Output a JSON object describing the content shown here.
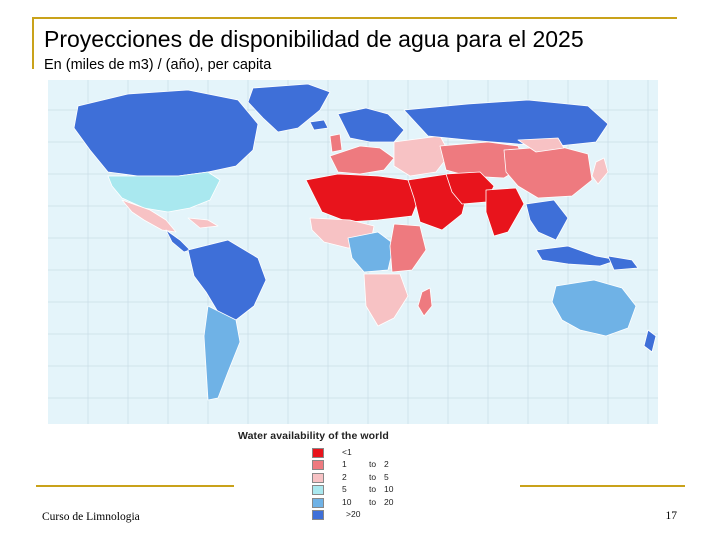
{
  "slide": {
    "title": "Proyecciones de disponibilidad de agua para el 2025",
    "subtitle": "En   (miles de m3) / (año), per capita",
    "footer": "Curso de Limnologia",
    "page_number": "17"
  },
  "map": {
    "legend_title": "Water availability of the world",
    "ocean_color": "#e4f4fa",
    "land_gray": "#c8c8c8",
    "legend": [
      {
        "color": "#e8141c",
        "from": "<1",
        "to_word": "",
        "to": ""
      },
      {
        "color": "#ee7a7f",
        "from": "1",
        "to_word": "to",
        "to": "2"
      },
      {
        "color": "#f7c2c4",
        "from": "2",
        "to_word": "to",
        "to": "5"
      },
      {
        "color": "#a9e8ef",
        "from": "5",
        "to_word": "to",
        "to": "10"
      },
      {
        "color": "#6fb2e6",
        "from": "10",
        "to_word": "to",
        "to": "20"
      },
      {
        "color": "#3e6fd8",
        "from": ">20",
        "to_word": "",
        "to": ""
      }
    ]
  }
}
